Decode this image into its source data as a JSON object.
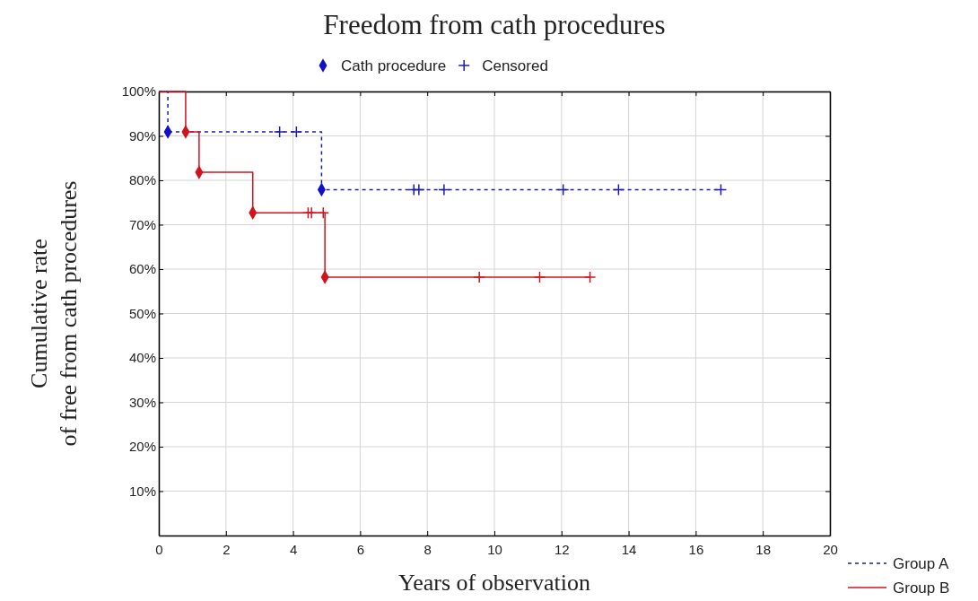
{
  "chart_data": {
    "type": "step",
    "title": "Freedom from cath procedures",
    "xlabel": "Years of observation",
    "ylabel": "Cumulative rate\nof free from cath procedures",
    "xlim": [
      0,
      20
    ],
    "xticks": [
      0,
      2,
      4,
      6,
      8,
      10,
      12,
      14,
      16,
      18,
      20
    ],
    "ylim": [
      0,
      100
    ],
    "yticks": [
      {
        "value": 10,
        "label": "10%"
      },
      {
        "value": 20,
        "label": "20%"
      },
      {
        "value": 30,
        "label": "30%"
      },
      {
        "value": 40,
        "label": "40%"
      },
      {
        "value": 50,
        "label": "50%"
      },
      {
        "value": 60,
        "label": "60%"
      },
      {
        "value": 70,
        "label": "70%"
      },
      {
        "value": 80,
        "label": "80%"
      },
      {
        "value": 90,
        "label": "90%"
      },
      {
        "value": 100,
        "label": "100%"
      }
    ],
    "grid": true,
    "legend": "bottom right",
    "series": [
      {
        "name": "Group A",
        "color": "#1c1ca8",
        "line_style": "dashed",
        "x": [
          0,
          0.27,
          4.85,
          16.75
        ],
        "values": [
          100,
          90.9,
          77.9,
          77.9
        ]
      },
      {
        "name": "Group B",
        "color": "#d0141e",
        "line_style": "solid",
        "x": [
          0,
          0.8,
          1.2,
          2.8,
          4.95,
          12.85
        ],
        "values": [
          100,
          90.9,
          81.8,
          72.7,
          58.2,
          58.2
        ]
      },
      {
        "name": "Cath procedure",
        "type": "scatter",
        "marker": "diamond",
        "color": "#1010c8",
        "colors": [
          "#1010c8",
          "#1010c8",
          "#d0141e",
          "#d0141e",
          "#d0141e",
          "#d0141e"
        ],
        "x": [
          0.27,
          4.85,
          0.8,
          1.2,
          2.8,
          4.95
        ],
        "values": [
          90.9,
          77.9,
          90.9,
          81.8,
          72.7,
          58.2
        ]
      },
      {
        "name": "Censored",
        "type": "scatter",
        "marker": "cross",
        "color": "#1c1ca8",
        "colors": [
          "#1c1ca8",
          "#1c1ca8",
          "#1c1ca8",
          "#1c1ca8",
          "#1c1ca8",
          "#1c1ca8",
          "#1c1ca8",
          "#1c1ca8",
          "#d0141e",
          "#d0141e",
          "#d0141e",
          "#d0141e",
          "#d0141e",
          "#d0141e"
        ],
        "x": [
          3.6,
          4.1,
          7.6,
          7.75,
          8.5,
          12.05,
          13.7,
          16.75,
          4.45,
          4.55,
          4.9,
          9.55,
          11.35,
          12.85
        ],
        "values": [
          90.9,
          90.9,
          77.9,
          77.9,
          77.9,
          77.9,
          77.9,
          77.9,
          72.7,
          72.7,
          72.7,
          58.2,
          58.2,
          58.2
        ]
      }
    ]
  }
}
